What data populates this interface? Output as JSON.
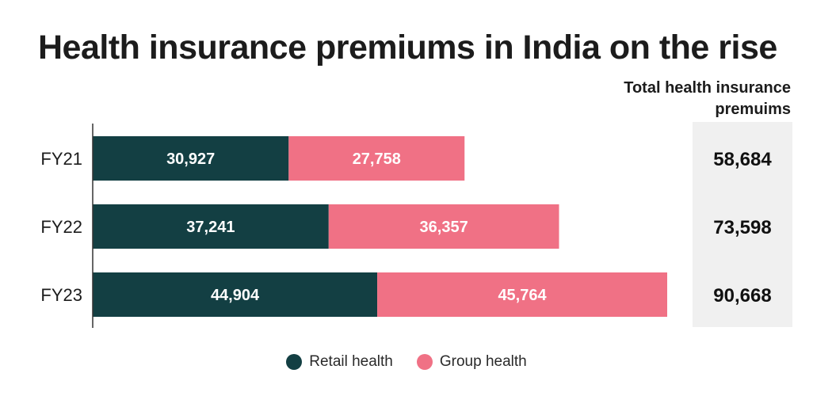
{
  "chart_data": {
    "type": "bar",
    "orientation": "horizontal",
    "stacked": true,
    "title": "Health insurance premiums in India on the rise",
    "categories": [
      "FY21",
      "FY22",
      "FY23"
    ],
    "series": [
      {
        "name": "Retail health",
        "color": "#133f43",
        "values": [
          30927,
          37241,
          44904
        ],
        "labels": [
          "30,927",
          "37,241",
          "44,904"
        ]
      },
      {
        "name": "Group health",
        "color": "#f07185",
        "values": [
          27758,
          36357,
          45764
        ],
        "labels": [
          "27,758",
          "36,357",
          "45,764"
        ]
      }
    ],
    "totals_header": "Total health insurance premuims",
    "totals": [
      58684,
      73598,
      90668
    ],
    "total_labels": [
      "58,684",
      "73,598",
      "90,668"
    ],
    "xlim": [
      0,
      90668
    ],
    "grid": false,
    "legend_position": "bottom-center"
  }
}
